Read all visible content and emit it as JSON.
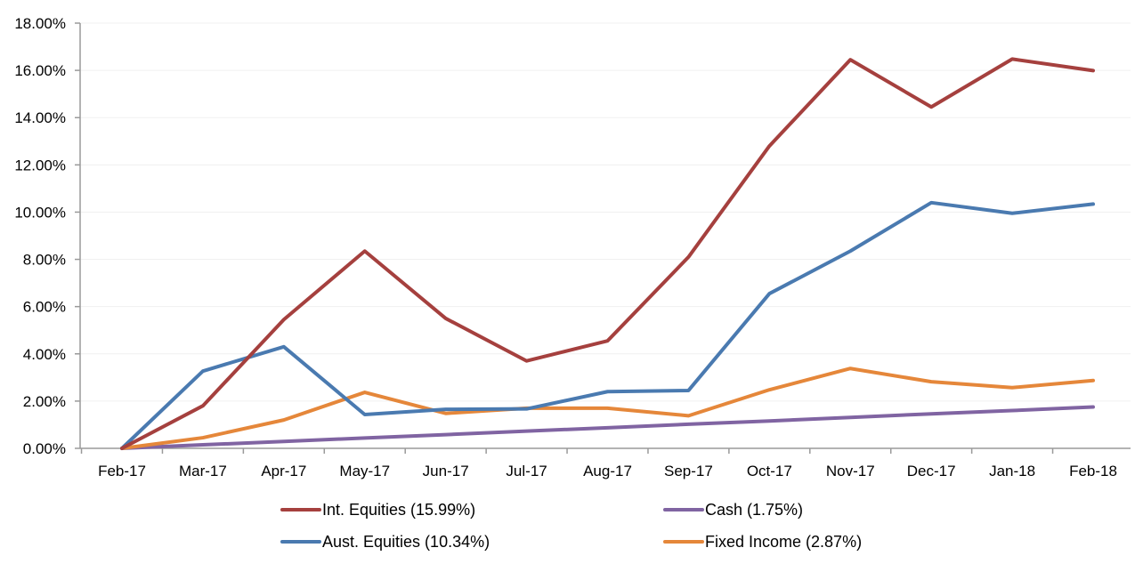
{
  "chart_data": {
    "type": "line",
    "title": "",
    "xlabel": "",
    "ylabel": "",
    "ylim": [
      0,
      18
    ],
    "yticks": [
      0,
      2,
      4,
      6,
      8,
      10,
      12,
      14,
      16,
      18
    ],
    "ytick_labels": [
      "0.00%",
      "2.00%",
      "4.00%",
      "6.00%",
      "8.00%",
      "10.00%",
      "12.00%",
      "14.00%",
      "16.00%",
      "18.00%"
    ],
    "grid": true,
    "legend_position": "bottom",
    "categories": [
      "Feb-17",
      "Mar-17",
      "Apr-17",
      "May-17",
      "Jun-17",
      "Jul-17",
      "Aug-17",
      "Sep-17",
      "Oct-17",
      "Nov-17",
      "Dec-17",
      "Jan-18",
      "Feb-18"
    ],
    "series": [
      {
        "name": "Int. Equities (15.99%)",
        "color": "#A5403E",
        "values": [
          0,
          1.8,
          5.45,
          8.35,
          5.5,
          3.7,
          4.55,
          8.1,
          12.8,
          16.45,
          14.45,
          16.48,
          15.99
        ]
      },
      {
        "name": "Cash (1.75%)",
        "color": "#8064A2",
        "values": [
          0,
          0.15,
          0.29,
          0.44,
          0.58,
          0.73,
          0.87,
          1.02,
          1.16,
          1.31,
          1.46,
          1.6,
          1.75
        ]
      },
      {
        "name": "Aust. Equities (10.34%)",
        "color": "#4A7AB0",
        "values": [
          0,
          3.27,
          4.3,
          1.43,
          1.65,
          1.67,
          2.4,
          2.45,
          6.55,
          8.35,
          10.4,
          9.95,
          10.34
        ]
      },
      {
        "name": "Fixed Income (2.87%)",
        "color": "#E5873A",
        "values": [
          0,
          0.45,
          1.2,
          2.37,
          1.48,
          1.7,
          1.7,
          1.38,
          2.48,
          3.38,
          2.82,
          2.57,
          2.87
        ]
      }
    ]
  }
}
